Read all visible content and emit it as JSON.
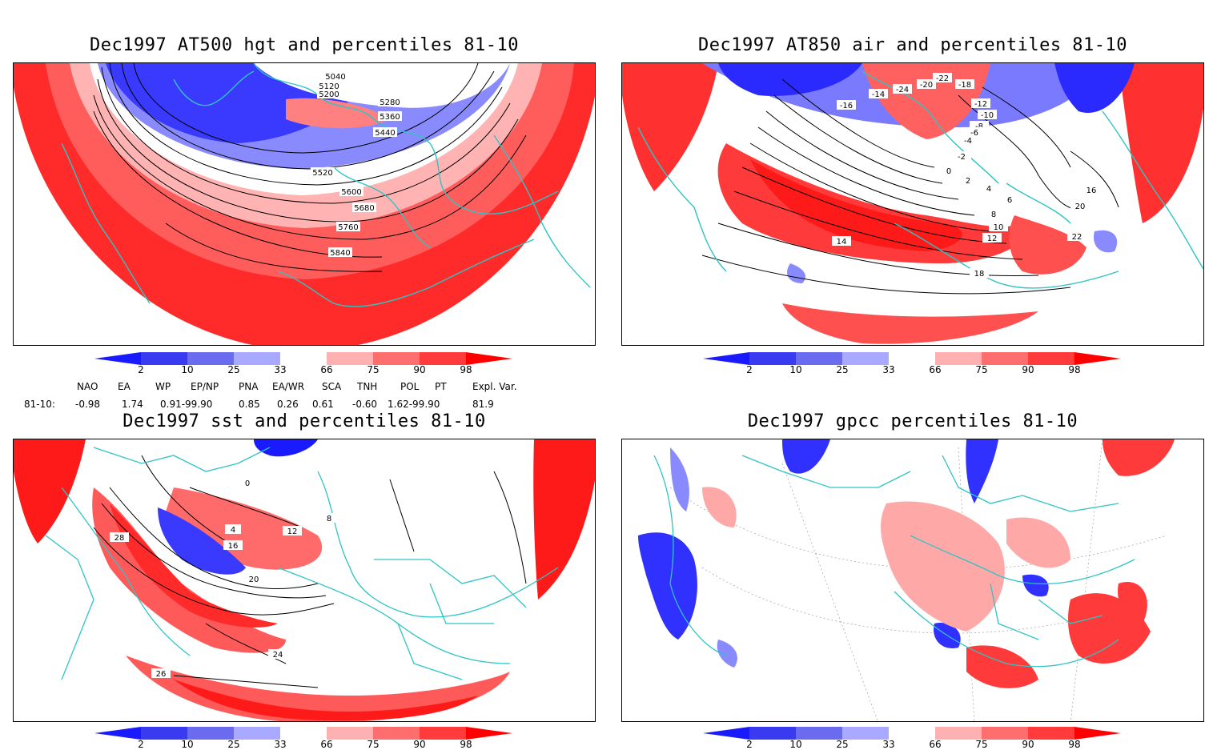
{
  "panels": [
    {
      "id": "p1",
      "title": "Dec1997 AT500 hgt and percentiles 81-10",
      "contour_labels": [
        "5040",
        "5120",
        "5200",
        "5280",
        "5360",
        "5440",
        "5520",
        "5600",
        "5680",
        "5760",
        "5840"
      ]
    },
    {
      "id": "p2",
      "title": "Dec1997 AT850 air and percentiles 81-10",
      "contour_labels": [
        "-22",
        "-20",
        "-18",
        "-16",
        "-14",
        "-12",
        "-10",
        "-8",
        "-6",
        "-4",
        "-2",
        "0",
        "2",
        "4",
        "6",
        "8",
        "10",
        "12",
        "14",
        "16",
        "18",
        "20",
        "22",
        "-24"
      ]
    },
    {
      "id": "p3",
      "title": "Dec1997 sst and percentiles 81-10",
      "contour_labels": [
        "0",
        "4",
        "8",
        "12",
        "16",
        "20",
        "24",
        "26",
        "28"
      ]
    },
    {
      "id": "p4",
      "title": "Dec1997 gpcc percentiles 81-10",
      "contour_labels": []
    }
  ],
  "colorbar": {
    "labels": [
      "2",
      "10",
      "25",
      "33",
      "66",
      "75",
      "90",
      "98"
    ],
    "colors": [
      "#1a1aff",
      "#3a3af0",
      "#6b6bf0",
      "#a9a9ff",
      "#ffffff",
      "#ffb0b0",
      "#ff6e6e",
      "#ff3b3b",
      "#ff0000"
    ]
  },
  "indices": {
    "header": [
      "NAO",
      "EA",
      "WP",
      "EP/NP",
      "PNA",
      "EA/WR",
      "SCA",
      "TNH",
      "POL",
      "PT",
      "Expl. Var."
    ],
    "row_label": "81-10:",
    "values": [
      "-0.98",
      "1.74",
      "0.91-99.90",
      "0.85",
      "0.26",
      "0.61",
      "-0.60",
      "1.62-99.90",
      "81.9"
    ]
  },
  "colors": {
    "coast": "#2ec4c4",
    "red": "#ff2020",
    "blue": "#2a2aff",
    "contour": "#000000"
  }
}
